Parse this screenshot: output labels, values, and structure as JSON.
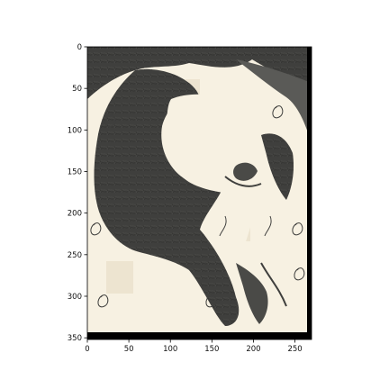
{
  "image": {
    "width": 270,
    "height": 352,
    "xlim": [
      0,
      270
    ],
    "ylim": [
      352,
      0
    ],
    "x_ticks": [
      0,
      50,
      100,
      150,
      200,
      250
    ],
    "y_ticks": [
      0,
      50,
      100,
      150,
      200,
      250,
      300,
      350
    ],
    "x_tick_labels": [
      "0",
      "50",
      "100",
      "150",
      "200",
      "250"
    ],
    "y_tick_labels": [
      "0",
      "50",
      "100",
      "150",
      "200",
      "250",
      "300",
      "350"
    ],
    "content": "sketchy-line-art-portrait-on-cream-paper",
    "colors": {
      "paper": "#f7f1e2",
      "ink": "#3f3f3d",
      "ink_light": "#6b6b68",
      "border_bar": "#000000",
      "patch": "#ece3cf"
    }
  }
}
